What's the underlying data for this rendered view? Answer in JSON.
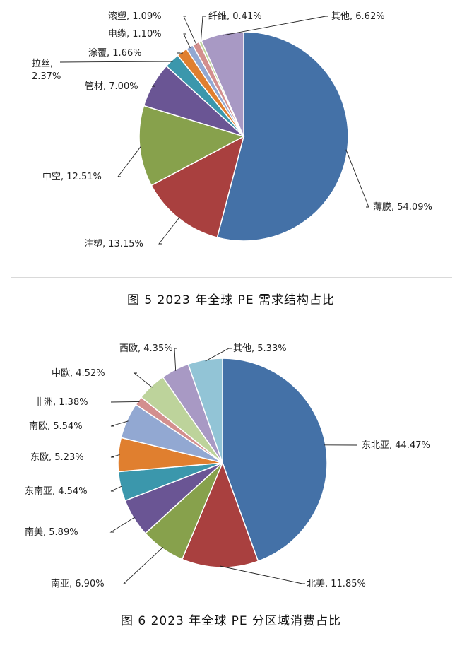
{
  "chart_data": [
    {
      "type": "pie",
      "title": "图 5 2023 年全球 PE 需求结构占比",
      "slices": [
        {
          "label": "薄膜",
          "value": 54.09,
          "display": "薄膜, 54.09%",
          "color": "#4471a7"
        },
        {
          "label": "注塑",
          "value": 13.15,
          "display": "注塑, 13.15%",
          "color": "#a9403f"
        },
        {
          "label": "中空",
          "value": 12.51,
          "display": "中空, 12.51%",
          "color": "#87a14c"
        },
        {
          "label": "管材",
          "value": 7.0,
          "display": "管材, 7.00%",
          "color": "#6a5594"
        },
        {
          "label": "拉丝",
          "value": 2.37,
          "display": "拉丝,\n2.37%",
          "color": "#3b97ac"
        },
        {
          "label": "涂覆",
          "value": 1.66,
          "display": "涂覆, 1.66%",
          "color": "#e07f2f"
        },
        {
          "label": "电缆",
          "value": 1.1,
          "display": "电缆, 1.10%",
          "color": "#92a8d2"
        },
        {
          "label": "滚塑",
          "value": 1.09,
          "display": "滚塑, 1.09%",
          "color": "#d38f8e"
        },
        {
          "label": "纤维",
          "value": 0.41,
          "display": "纤维, 0.41%",
          "color": "#bdd39b"
        },
        {
          "label": "其他",
          "value": 6.62,
          "display": "其他, 6.62%",
          "color": "#a899c4"
        }
      ]
    },
    {
      "type": "pie",
      "title": "图 6 2023 年全球 PE 分区域消费占比",
      "slices": [
        {
          "label": "东北亚",
          "value": 44.47,
          "display": "东北亚, 44.47%",
          "color": "#4471a7"
        },
        {
          "label": "北美",
          "value": 11.85,
          "display": "北美, 11.85%",
          "color": "#a9403f"
        },
        {
          "label": "南亚",
          "value": 6.9,
          "display": "南亚, 6.90%",
          "color": "#87a14c"
        },
        {
          "label": "南美",
          "value": 5.89,
          "display": "南美, 5.89%",
          "color": "#6a5594"
        },
        {
          "label": "东南亚",
          "value": 4.54,
          "display": "东南亚, 4.54%",
          "color": "#3b97ac"
        },
        {
          "label": "东欧",
          "value": 5.23,
          "display": "东欧, 5.23%",
          "color": "#e07f2f"
        },
        {
          "label": "南欧",
          "value": 5.54,
          "display": "南欧, 5.54%",
          "color": "#92a8d2"
        },
        {
          "label": "非洲",
          "value": 1.38,
          "display": "非洲, 1.38%",
          "color": "#d38f8e"
        },
        {
          "label": "中欧",
          "value": 4.52,
          "display": "中欧, 4.52%",
          "color": "#bdd39b"
        },
        {
          "label": "西欧",
          "value": 4.35,
          "display": "西欧, 4.35%",
          "color": "#a899c4"
        },
        {
          "label": "其他",
          "value": 5.33,
          "display": "其他, 5.33%",
          "color": "#92c4d6"
        }
      ]
    }
  ]
}
